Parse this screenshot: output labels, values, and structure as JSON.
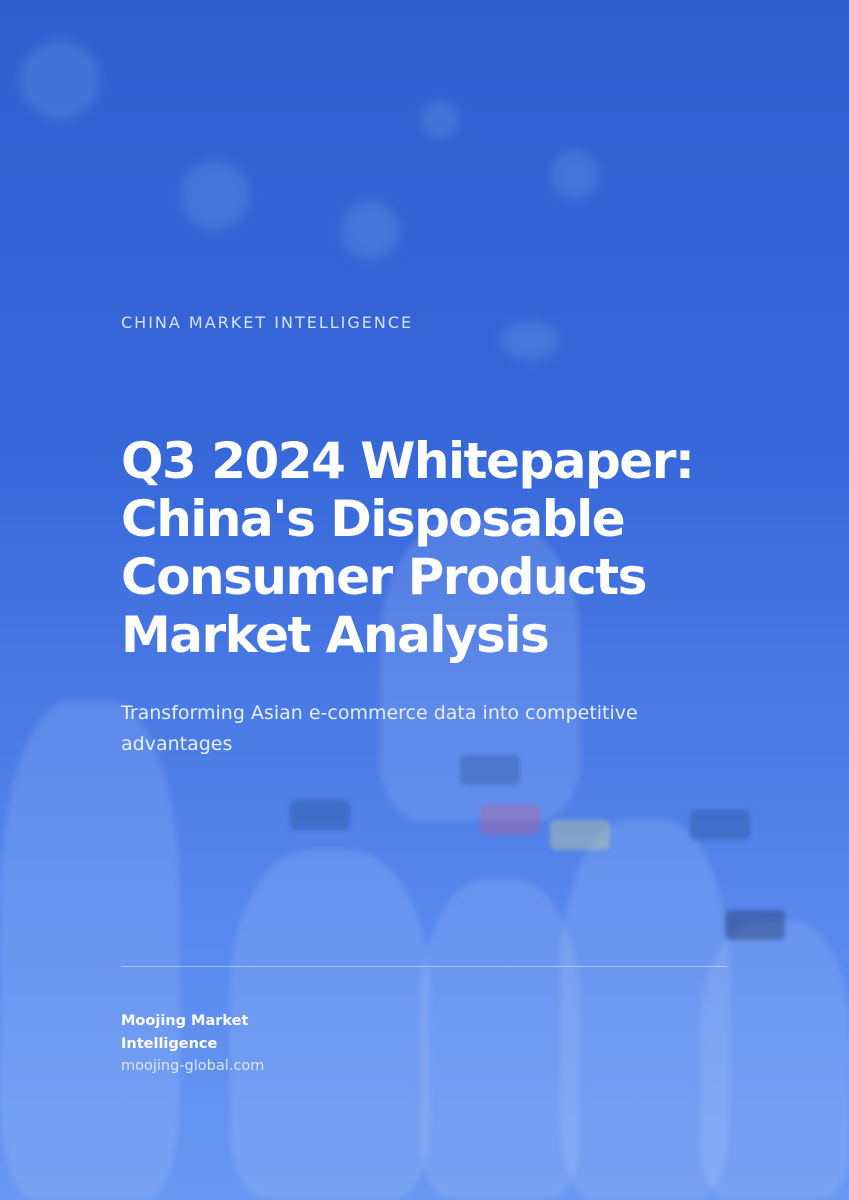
{
  "cover": {
    "eyebrow": "CHINA MARKET INTELLIGENCE",
    "title": "Q3 2024 Whitepaper: China's Disposable Consumer Products Market Analysis",
    "subtitle": "Transforming Asian e-commerce data into competitive advantages",
    "organization": "Moojing Market Intelligence",
    "website": "moojing-global.com",
    "background": "blue-tinted photo of plastic bottles",
    "accent_color": "#3566d8"
  }
}
